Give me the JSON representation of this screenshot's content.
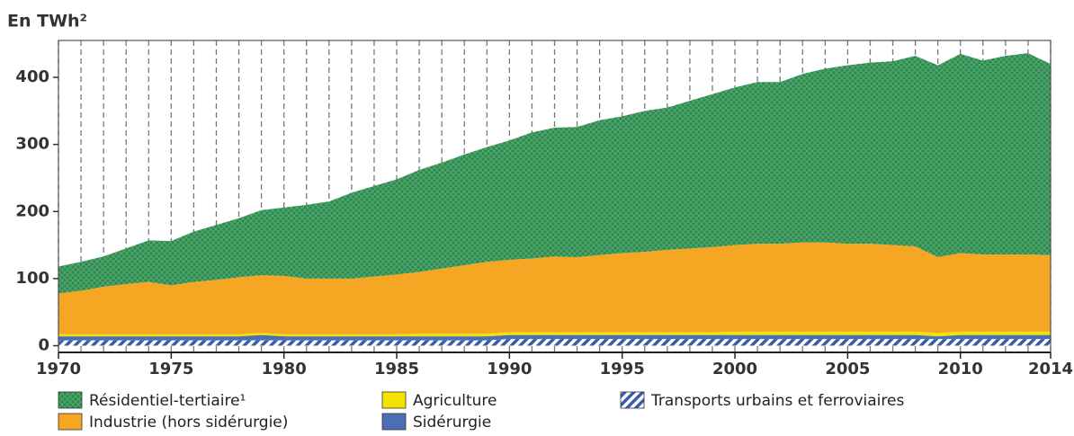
{
  "chart_data": {
    "type": "stacked_area",
    "title": "En TWh²",
    "x": [
      1970,
      1971,
      1972,
      1973,
      1974,
      1975,
      1976,
      1977,
      1978,
      1979,
      1980,
      1981,
      1982,
      1983,
      1984,
      1985,
      1986,
      1987,
      1988,
      1989,
      1990,
      1991,
      1992,
      1993,
      1994,
      1995,
      1996,
      1997,
      1998,
      1999,
      2000,
      2001,
      2002,
      2003,
      2004,
      2005,
      2006,
      2007,
      2008,
      2009,
      2010,
      2011,
      2012,
      2013,
      2014
    ],
    "xlim": [
      1970,
      2014
    ],
    "xticks": [
      1970,
      1975,
      1980,
      1985,
      1990,
      1995,
      2000,
      2005,
      2010,
      2014
    ],
    "ylim": [
      -10,
      455
    ],
    "yticks": [
      0,
      100,
      200,
      300,
      400
    ],
    "grid": true,
    "series": [
      {
        "name": "Transports urbains et ferroviaires",
        "color": "#3a5ba8",
        "pattern": "hatch",
        "values": [
          8,
          8,
          8,
          8,
          8,
          8,
          8,
          8,
          8,
          8,
          8,
          8,
          8,
          8,
          8,
          8,
          8,
          8,
          8,
          8,
          10,
          10,
          10,
          10,
          10,
          10,
          10,
          10,
          10,
          10,
          10,
          10,
          10,
          10,
          10,
          10,
          10,
          10,
          10,
          10,
          10,
          10,
          10,
          10,
          10
        ]
      },
      {
        "name": "Sidérurgie",
        "color": "#4a6fb5",
        "values": [
          6,
          6,
          6,
          6,
          6,
          6,
          6,
          6,
          6,
          8,
          6,
          6,
          6,
          6,
          6,
          6,
          6,
          6,
          6,
          6,
          6,
          6,
          6,
          6,
          6,
          6,
          6,
          6,
          6,
          6,
          6,
          6,
          6,
          6,
          6,
          6,
          6,
          6,
          6,
          4,
          6,
          6,
          6,
          6,
          6
        ]
      },
      {
        "name": "Agriculture",
        "color": "#f2e400",
        "values": [
          3,
          3,
          3,
          3,
          3,
          3,
          3,
          3,
          3,
          3,
          3,
          3,
          3,
          3,
          3,
          3,
          4,
          4,
          4,
          4,
          4,
          4,
          4,
          4,
          4,
          4,
          4,
          4,
          4,
          4,
          5,
          5,
          5,
          5,
          5,
          5,
          5,
          5,
          5,
          5,
          5,
          5,
          5,
          5,
          5
        ]
      },
      {
        "name": "Industrie (hors sidérurgie)",
        "color": "#f5a623",
        "values": [
          61,
          65,
          71,
          75,
          78,
          73,
          78,
          81,
          85,
          86,
          87,
          83,
          83,
          83,
          86,
          89,
          92,
          97,
          102,
          107,
          108,
          110,
          113,
          112,
          115,
          118,
          120,
          123,
          125,
          127,
          129,
          131,
          131,
          133,
          133,
          131,
          131,
          129,
          127,
          113,
          117,
          115,
          115,
          115,
          114
        ]
      },
      {
        "name": "Résidentiel-tertiaire¹",
        "color": "#2e8b4e",
        "pattern": "dots",
        "values": [
          40,
          43,
          45,
          53,
          62,
          66,
          75,
          82,
          88,
          97,
          102,
          110,
          115,
          128,
          135,
          142,
          152,
          158,
          165,
          171,
          178,
          188,
          192,
          194,
          201,
          204,
          210,
          212,
          220,
          228,
          235,
          241,
          241,
          251,
          259,
          266,
          270,
          274,
          284,
          286,
          297,
          289,
          296,
          300,
          285
        ]
      }
    ]
  }
}
